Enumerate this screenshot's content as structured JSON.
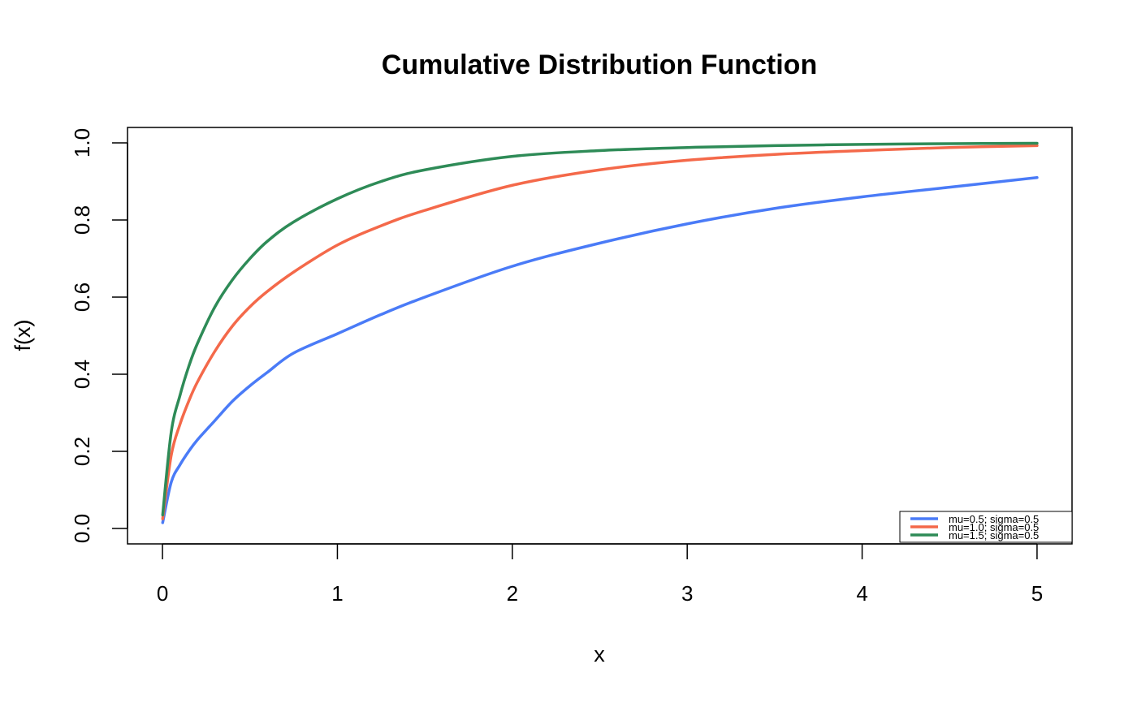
{
  "chart_data": {
    "type": "line",
    "title": "Cumulative Distribution Function",
    "xlabel": "x",
    "ylabel": "f(x)",
    "xlim": [
      -0.2,
      5.2
    ],
    "ylim": [
      -0.04,
      1.04
    ],
    "xticks": [
      0,
      1,
      2,
      3,
      4,
      5
    ],
    "xtick_labels": [
      "0",
      "1",
      "2",
      "3",
      "4",
      "5"
    ],
    "yticks": [
      0.0,
      0.2,
      0.4,
      0.6,
      0.8,
      1.0
    ],
    "ytick_labels": [
      "0.0",
      "0.2",
      "0.4",
      "0.6",
      "0.8",
      "1.0"
    ],
    "grid": false,
    "legend_position": "bottom-right",
    "x": [
      0.001,
      0.05,
      0.1,
      0.15,
      0.2,
      0.3,
      0.4,
      0.5,
      0.6,
      0.75,
      1.0,
      1.25,
      1.5,
      2.0,
      2.5,
      3.0,
      3.5,
      4.0,
      4.5,
      5.0
    ],
    "series": [
      {
        "name": "mu=0.5; sigma=0.5",
        "color": "#4A7BF7",
        "values": [
          0.015,
          0.12,
          0.165,
          0.2,
          0.23,
          0.28,
          0.33,
          0.37,
          0.405,
          0.455,
          0.505,
          0.555,
          0.6,
          0.68,
          0.74,
          0.79,
          0.83,
          0.86,
          0.885,
          0.91
        ]
      },
      {
        "name": "mu=1.0; sigma=0.5",
        "color": "#F4694A",
        "values": [
          0.025,
          0.19,
          0.27,
          0.33,
          0.38,
          0.46,
          0.525,
          0.575,
          0.615,
          0.665,
          0.735,
          0.785,
          0.825,
          0.89,
          0.93,
          0.955,
          0.97,
          0.98,
          0.988,
          0.993
        ]
      },
      {
        "name": "mu=1.5; sigma=0.5",
        "color": "#2E8B57",
        "values": [
          0.035,
          0.25,
          0.345,
          0.42,
          0.48,
          0.575,
          0.645,
          0.7,
          0.745,
          0.795,
          0.855,
          0.9,
          0.93,
          0.965,
          0.98,
          0.988,
          0.993,
          0.996,
          0.998,
          0.999
        ]
      }
    ]
  }
}
